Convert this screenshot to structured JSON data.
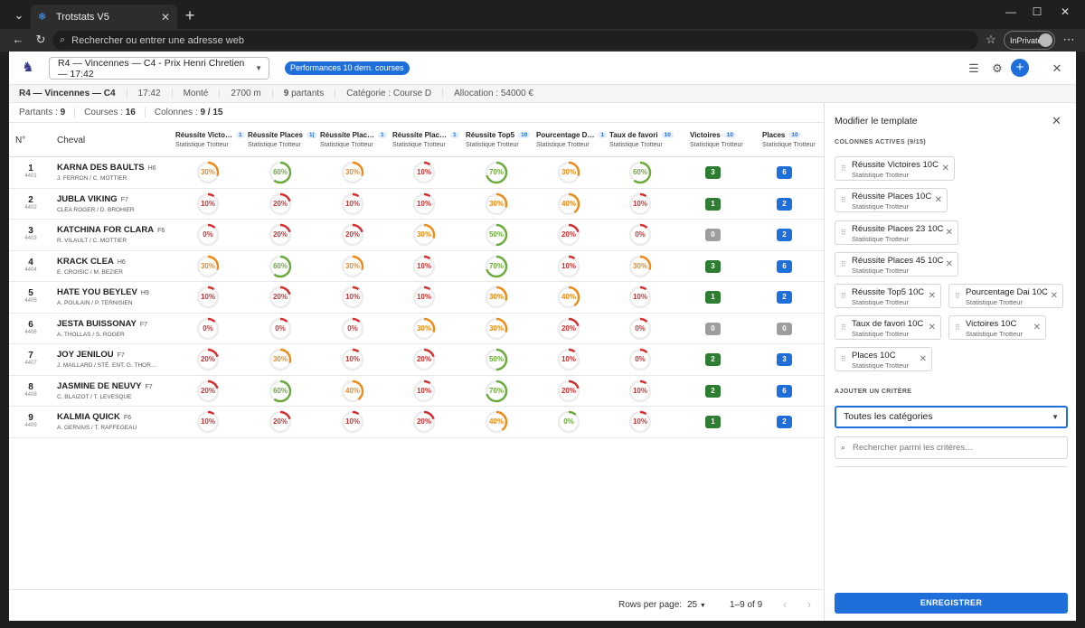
{
  "browser": {
    "tab_title": "Trotstats V5",
    "address_placeholder": "Rechercher ou entrer une adresse web",
    "inprivate_label": "InPrivate"
  },
  "header": {
    "race_select_value": "R4 — Vincennes — C4 - Prix Henri Chretien — 17:42",
    "perf_chip": "Performances 10 dern. courses"
  },
  "race_info": {
    "race": "R4 — Vincennes — C4",
    "time": "17:42",
    "type": "Monté",
    "distance": "2700 m",
    "partants_count": "9",
    "partants_label": "partants",
    "category": "Catégorie : Course D",
    "allocation": "Allocation : 54000 €"
  },
  "counts": {
    "partants_label": "Partants :",
    "partants": "9",
    "courses_label": "Courses :",
    "courses": "16",
    "colonnes_label": "Colonnes :",
    "colonnes": "9 / 15"
  },
  "table": {
    "col_num": "N°",
    "col_horse": "Cheval",
    "columns": [
      {
        "title": "Réussite Victo…",
        "n": "1",
        "sub": "Statistique Trotteur"
      },
      {
        "title": "Réussite Places",
        "n": "1(",
        "sub": "Statistique Trotteur"
      },
      {
        "title": "Réussite Plac…",
        "n": "1",
        "sub": "Statistique Trotteur"
      },
      {
        "title": "Réussite Plac…",
        "n": "1",
        "sub": "Statistique Trotteur"
      },
      {
        "title": "Réussite Top5",
        "n": "10",
        "sub": "Statistique Trotteur"
      },
      {
        "title": "Pourcentage D…",
        "n": "1",
        "sub": "Statistique Trotteur"
      },
      {
        "title": "Taux de favori",
        "n": "10",
        "sub": "Statistique Trotteur"
      },
      {
        "title": "Victoires",
        "n": "10",
        "sub": "Statistique Trotteur"
      },
      {
        "title": "Places",
        "n": "10",
        "sub": "Statistique Trotteur"
      }
    ],
    "rows": [
      {
        "num": "1",
        "id": "4401",
        "name": "KARNA DES BAULTS",
        "sex": "H6",
        "people": "J. FERRON / C. MOTTIER",
        "pct": [
          "30%",
          "60%",
          "30%",
          "10%",
          "70%",
          "30%",
          "60%"
        ],
        "wins": "3",
        "places": "6"
      },
      {
        "num": "2",
        "id": "4402",
        "name": "JUBLA VIKING",
        "sex": "F7",
        "people": "CLEA ROGER / D. BROHIER",
        "pct": [
          "10%",
          "20%",
          "10%",
          "10%",
          "30%",
          "40%",
          "10%"
        ],
        "wins": "1",
        "places": "2"
      },
      {
        "num": "3",
        "id": "4403",
        "name": "KATCHINA FOR CLARA",
        "sex": "F6",
        "people": "R. VILAULT / C. MOTTIER",
        "pct": [
          "0%",
          "20%",
          "20%",
          "30%",
          "50%",
          "20%",
          "0%"
        ],
        "wins": "0",
        "places": "2"
      },
      {
        "num": "4",
        "id": "4404",
        "name": "KRACK CLEA",
        "sex": "H6",
        "people": "E. CROISIC / M. BEZIER",
        "pct": [
          "30%",
          "60%",
          "30%",
          "10%",
          "70%",
          "10%",
          "30%"
        ],
        "wins": "3",
        "places": "6"
      },
      {
        "num": "5",
        "id": "4405",
        "name": "HATE YOU BEYLEV",
        "sex": "H9",
        "people": "A. POULAIN / P. TERNISIEN",
        "pct": [
          "10%",
          "20%",
          "10%",
          "10%",
          "30%",
          "40%",
          "10%"
        ],
        "wins": "1",
        "places": "2"
      },
      {
        "num": "6",
        "id": "4406",
        "name": "JESTA BUISSONAY",
        "sex": "F7",
        "people": "A. THOLLAS / S. ROGER",
        "pct": [
          "0%",
          "0%",
          "0%",
          "30%",
          "30%",
          "20%",
          "0%"
        ],
        "wins": "0",
        "places": "0"
      },
      {
        "num": "7",
        "id": "4407",
        "name": "JOY JENILOU",
        "sex": "F7",
        "people": "J. MAILLARD / STÉ. ENT. G. THOR…",
        "pct": [
          "20%",
          "30%",
          "10%",
          "20%",
          "50%",
          "10%",
          "0%"
        ],
        "wins": "2",
        "places": "3"
      },
      {
        "num": "8",
        "id": "4408",
        "name": "JASMINE DE NEUVY",
        "sex": "F7",
        "people": "C. BLAIZOT / T. LEVESQUE",
        "pct": [
          "20%",
          "60%",
          "40%",
          "10%",
          "70%",
          "20%",
          "10%"
        ],
        "wins": "2",
        "places": "6"
      },
      {
        "num": "9",
        "id": "4409",
        "name": "KALMIA QUICK",
        "sex": "F6",
        "people": "A. GERVAIS / T. RAFFEGEAU",
        "pct": [
          "10%",
          "20%",
          "10%",
          "20%",
          "40%",
          "0%",
          "10%"
        ],
        "wins": "1",
        "places": "2"
      }
    ]
  },
  "footer": {
    "rows_per_page_label": "Rows per page:",
    "rows_per_page": "25",
    "range": "1–9 of 9"
  },
  "panel": {
    "title": "Modifier le template",
    "active_label": "COLONNES ACTIVES (9/15)",
    "chips": [
      {
        "title": "Réussite Victoires 10C",
        "sub": "Statistique Trotteur"
      },
      {
        "title": "Réussite Places 10C",
        "sub": "Statistique Trotteur"
      },
      {
        "title": "Réussite Places 23 10C",
        "sub": "Statistique Trotteur"
      },
      {
        "title": "Réussite Places 45 10C",
        "sub": "Statistique Trotteur"
      },
      {
        "title": "Réussite Top5 10C",
        "sub": "Statistique Trotteur"
      },
      {
        "title": "Pourcentage Dai 10C",
        "sub": "Statistique Trotteur"
      },
      {
        "title": "Taux de favori 10C",
        "sub": "Statistique Trotteur"
      },
      {
        "title": "Victoires 10C",
        "sub": "Statistique Trotteur"
      },
      {
        "title": "Places 10C",
        "sub": "Statistique Trotteur"
      }
    ],
    "add_label": "AJOUTER UN CRITÈRE",
    "category_select": "Toutes les catégories",
    "search_placeholder": "Rechercher parmi les critères…",
    "save_button": "ENREGISTRER"
  },
  "colors": {
    "primary": "#1e6fd9",
    "ring_red": "#d32f2f",
    "ring_orange": "#ef8a17",
    "ring_green": "#6aaa3a",
    "badge_green": "#2e7d32",
    "badge_blue": "#1e6fd9",
    "badge_gray": "#9e9e9e"
  }
}
